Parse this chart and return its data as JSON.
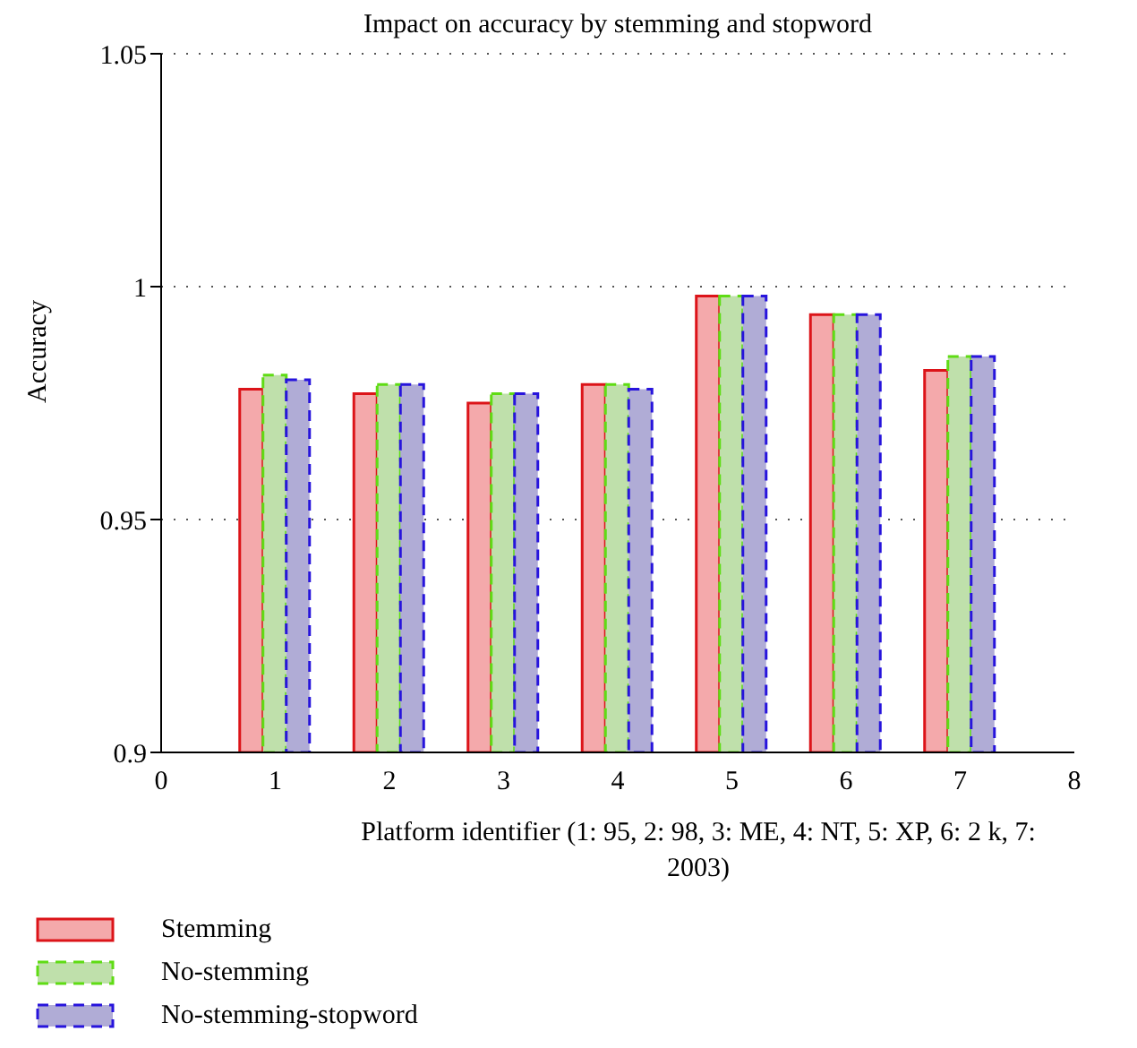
{
  "chart_data": {
    "type": "bar",
    "title": "Impact on accuracy by stemming and stopword",
    "xlabel": "Platform identifier (1: 95, 2: 98, 3: ME, 4: NT, 5: XP, 6: 2 k, 7: 2003)",
    "ylabel": "Accuracy",
    "x": [
      1,
      2,
      3,
      4,
      5,
      6,
      7
    ],
    "series": [
      {
        "name": "Stemming",
        "color": "#f4a9ab",
        "line_style": "solid",
        "values": [
          0.978,
          0.977,
          0.975,
          0.979,
          0.998,
          0.994,
          0.982
        ]
      },
      {
        "name": "No-stemming",
        "color": "#bfe0ab",
        "line_style": "dashed",
        "values": [
          0.981,
          0.979,
          0.977,
          0.979,
          0.998,
          0.994,
          0.985
        ]
      },
      {
        "name": "No-stemming-stopword",
        "color": "#b0acd6",
        "line_style": "dashed",
        "values": [
          0.98,
          0.979,
          0.977,
          0.978,
          0.998,
          0.994,
          0.985
        ]
      }
    ],
    "xlim": [
      0,
      8
    ],
    "xticks": [
      0,
      1,
      2,
      3,
      4,
      5,
      6,
      7,
      8
    ],
    "ylim": [
      0.9,
      1.05
    ],
    "yticks": [
      0.9,
      0.95,
      1,
      1.05
    ],
    "grid": "y",
    "legend": "bottom left"
  }
}
